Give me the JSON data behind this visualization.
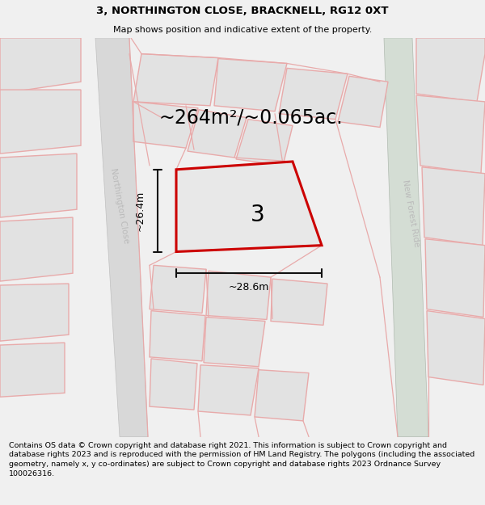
{
  "title": "3, NORTHINGTON CLOSE, BRACKNELL, RG12 0XT",
  "subtitle": "Map shows position and indicative extent of the property.",
  "footer": "Contains OS data © Crown copyright and database right 2021. This information is subject to Crown copyright and database rights 2023 and is reproduced with the permission of HM Land Registry. The polygons (including the associated geometry, namely x, y co-ordinates) are subject to Crown copyright and database rights 2023 Ordnance Survey 100026316.",
  "area_label": "~264m²/~0.065ac.",
  "width_label": "~28.6m",
  "height_label": "~26.4m",
  "plot_number": "3",
  "bg_color": "#f0f0f0",
  "map_bg": "#ffffff",
  "block_fill": "#e2e2e2",
  "plot_fill": "#e2e2e2",
  "plot_outline": "#cc0000",
  "road_stripe": "#d0d0d0",
  "pink": "#e8aaaa",
  "gray_edge": "#c0c0c0",
  "dim_color": "#111111",
  "road_label_color": "#bbbbbb",
  "title_fontsize": 9.5,
  "subtitle_fontsize": 8,
  "footer_fontsize": 6.8,
  "area_fontsize": 17,
  "plot_label_fontsize": 20,
  "dim_fontsize": 9
}
